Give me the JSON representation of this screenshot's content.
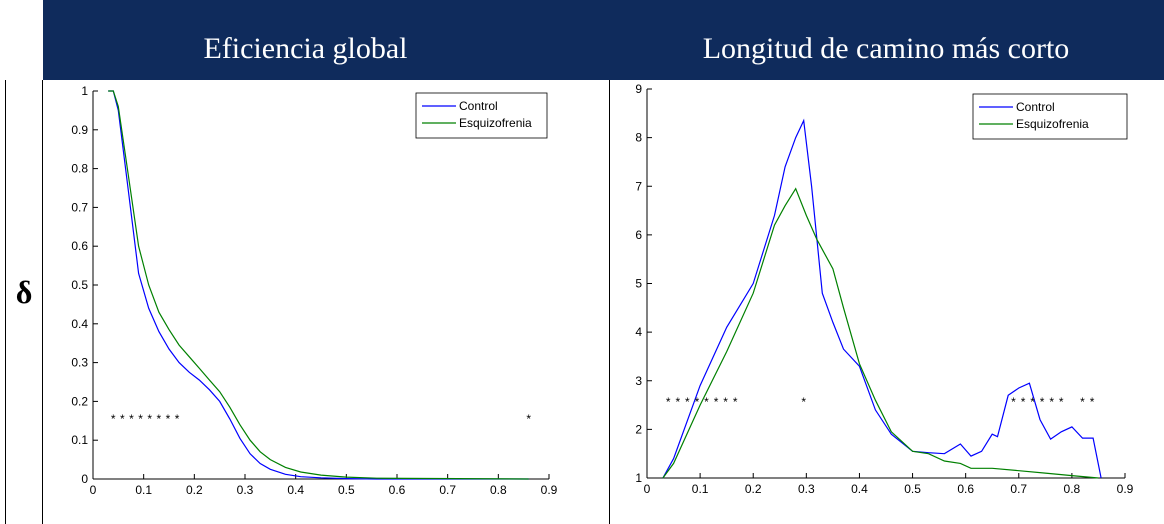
{
  "table": {
    "col1_header": "Eficiencia global",
    "col2_header": "Longitud de camino más corto",
    "row_label": "δ"
  },
  "chart_data": [
    {
      "type": "line",
      "title": "Eficiencia global",
      "xlim": [
        0,
        0.9
      ],
      "ylim": [
        0,
        1
      ],
      "xticks": [
        "0",
        "0.1",
        "0.2",
        "0.3",
        "0.4",
        "0.5",
        "0.6",
        "0.7",
        "0.8",
        "0.9"
      ],
      "yticks": [
        "0",
        "0.1",
        "0.2",
        "0.3",
        "0.4",
        "0.5",
        "0.6",
        "0.7",
        "0.8",
        "0.9",
        "1"
      ],
      "legend_position": "top-right",
      "series": [
        {
          "name": "Control",
          "color": "#0000ff",
          "x": [
            0.03,
            0.04,
            0.05,
            0.07,
            0.09,
            0.11,
            0.13,
            0.15,
            0.17,
            0.19,
            0.21,
            0.23,
            0.25,
            0.27,
            0.29,
            0.31,
            0.33,
            0.35,
            0.38,
            0.41,
            0.45,
            0.5,
            0.56,
            0.86
          ],
          "y": [
            1.0,
            1.0,
            0.95,
            0.74,
            0.53,
            0.44,
            0.38,
            0.335,
            0.3,
            0.275,
            0.255,
            0.23,
            0.2,
            0.155,
            0.105,
            0.065,
            0.04,
            0.025,
            0.012,
            0.006,
            0.003,
            0.001,
            0.0,
            0.0
          ]
        },
        {
          "name": "Esquizofrenia",
          "color": "#008000",
          "x": [
            0.03,
            0.04,
            0.05,
            0.07,
            0.09,
            0.11,
            0.13,
            0.15,
            0.17,
            0.19,
            0.21,
            0.23,
            0.25,
            0.27,
            0.29,
            0.31,
            0.33,
            0.35,
            0.38,
            0.41,
            0.45,
            0.5,
            0.56,
            0.86
          ],
          "y": [
            1.0,
            1.0,
            0.96,
            0.78,
            0.6,
            0.5,
            0.43,
            0.385,
            0.345,
            0.315,
            0.285,
            0.255,
            0.225,
            0.185,
            0.14,
            0.1,
            0.07,
            0.05,
            0.03,
            0.018,
            0.01,
            0.005,
            0.002,
            0.0
          ]
        }
      ],
      "significance": {
        "color": "#0000ff",
        "y": 0.165,
        "x": [
          0.04,
          0.058,
          0.076,
          0.094,
          0.112,
          0.13,
          0.148,
          0.166,
          0.86
        ]
      }
    },
    {
      "type": "line",
      "title": "Longitud de camino más corto",
      "xlim": [
        0,
        0.9
      ],
      "ylim": [
        1,
        9
      ],
      "xticks": [
        "0",
        "0.1",
        "0.2",
        "0.3",
        "0.4",
        "0.5",
        "0.6",
        "0.7",
        "0.8",
        "0.9"
      ],
      "yticks": [
        "1",
        "2",
        "3",
        "4",
        "5",
        "6",
        "7",
        "8",
        "9"
      ],
      "legend_position": "top-right",
      "series": [
        {
          "name": "Control",
          "color": "#0000ff",
          "x": [
            0.03,
            0.05,
            0.1,
            0.15,
            0.2,
            0.24,
            0.26,
            0.28,
            0.295,
            0.31,
            0.33,
            0.35,
            0.37,
            0.4,
            0.43,
            0.46,
            0.5,
            0.53,
            0.56,
            0.59,
            0.61,
            0.63,
            0.65,
            0.66,
            0.68,
            0.7,
            0.72,
            0.74,
            0.76,
            0.78,
            0.8,
            0.82,
            0.84,
            0.855
          ],
          "y": [
            1.0,
            1.4,
            2.9,
            4.1,
            5.0,
            6.4,
            7.4,
            8.0,
            8.35,
            7.0,
            4.8,
            4.2,
            3.65,
            3.3,
            2.4,
            1.9,
            1.55,
            1.52,
            1.5,
            1.7,
            1.45,
            1.55,
            1.9,
            1.85,
            2.7,
            2.85,
            2.95,
            2.2,
            1.8,
            1.95,
            2.05,
            1.82,
            1.82,
            1.0
          ]
        },
        {
          "name": "Esquizofrenia",
          "color": "#008000",
          "x": [
            0.03,
            0.05,
            0.1,
            0.15,
            0.2,
            0.24,
            0.26,
            0.28,
            0.3,
            0.32,
            0.35,
            0.37,
            0.4,
            0.43,
            0.46,
            0.5,
            0.53,
            0.56,
            0.59,
            0.61,
            0.65,
            0.7,
            0.75,
            0.8,
            0.85
          ],
          "y": [
            1.0,
            1.3,
            2.5,
            3.6,
            4.8,
            6.2,
            6.6,
            6.95,
            6.4,
            5.9,
            5.3,
            4.5,
            3.35,
            2.6,
            1.95,
            1.55,
            1.5,
            1.35,
            1.3,
            1.2,
            1.2,
            1.15,
            1.1,
            1.05,
            1.0
          ]
        }
      ],
      "significance": {
        "color": "#0000ff",
        "y": 2.65,
        "x": [
          0.04,
          0.058,
          0.076,
          0.094,
          0.112,
          0.13,
          0.148,
          0.166,
          0.295,
          0.69,
          0.708,
          0.726,
          0.744,
          0.762,
          0.78,
          0.82,
          0.838
        ]
      }
    }
  ]
}
